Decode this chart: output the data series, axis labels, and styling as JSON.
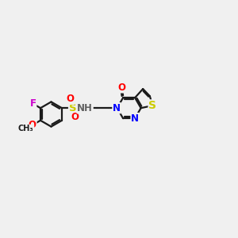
{
  "bg_color": "#f0f0f0",
  "bond_color": "#1a1a1a",
  "bond_width": 1.6,
  "atom_colors": {
    "F": "#cc00cc",
    "O": "#ff0000",
    "N": "#0000ff",
    "S_sulfonyl": "#cccc00",
    "S_thio": "#cccc00",
    "H_color": "#606060",
    "C": "#1a1a1a"
  },
  "font_size": 8.5,
  "xlim": [
    0,
    10
  ],
  "ylim": [
    0,
    10
  ]
}
